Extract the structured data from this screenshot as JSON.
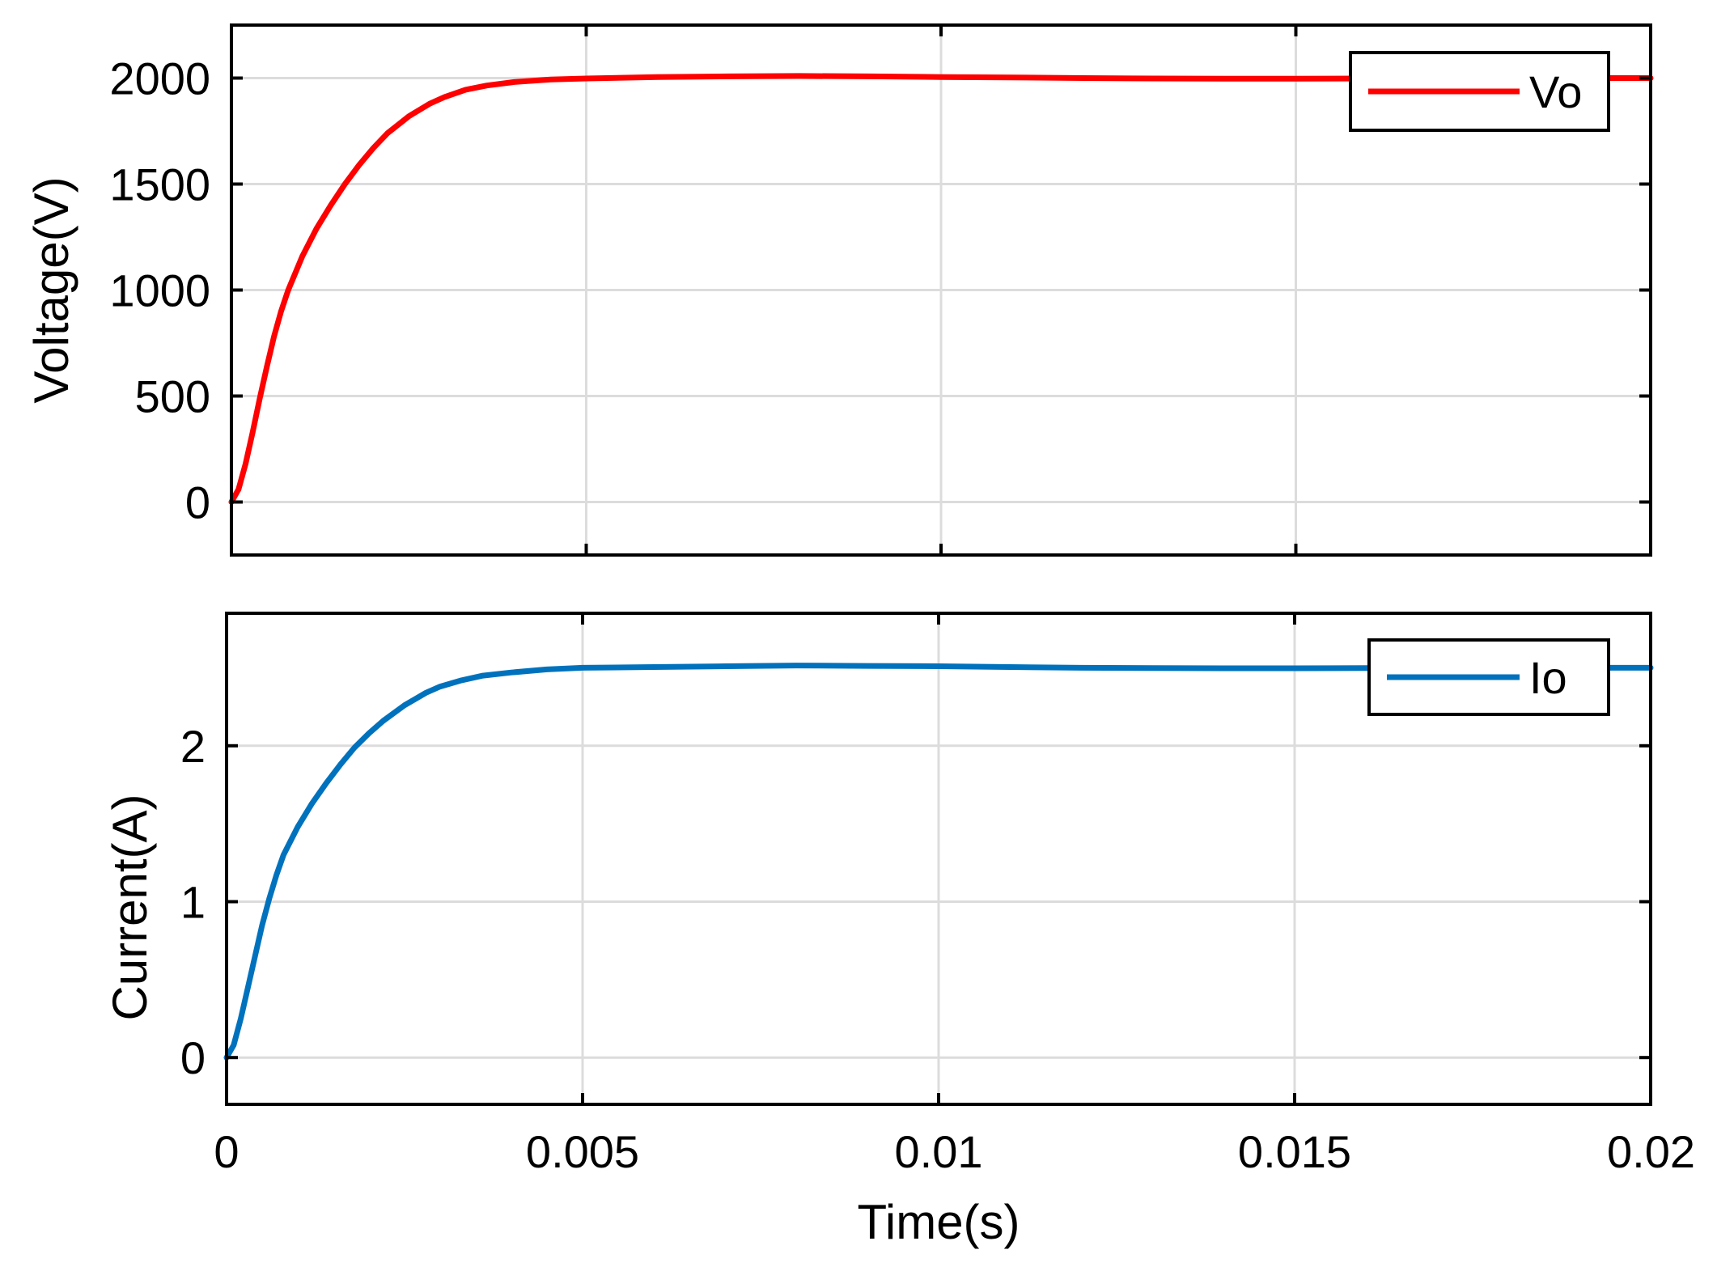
{
  "chart_data": [
    {
      "type": "line",
      "xlabel": "",
      "ylabel": "Voltage(V)",
      "xlim": [
        0,
        0.02
      ],
      "ylim": [
        -250,
        2250
      ],
      "xticks": [
        0,
        0.005,
        0.01,
        0.015,
        0.02
      ],
      "xtick_labels": [],
      "yticks": [
        0,
        500,
        1000,
        1500,
        2000
      ],
      "ytick_labels": [
        "0",
        "500",
        "1000",
        "1500",
        "2000"
      ],
      "grid": true,
      "legend": "top-right",
      "series": [
        {
          "name": "Vo",
          "color": "#ff0000",
          "x": [
            0,
            0.0001,
            0.0002,
            0.0003,
            0.0004,
            0.0005,
            0.0006,
            0.0007,
            0.0008,
            0.001,
            0.0012,
            0.0014,
            0.0016,
            0.0018,
            0.002,
            0.0022,
            0.0025,
            0.0028,
            0.003,
            0.0033,
            0.0036,
            0.004,
            0.0045,
            0.005,
            0.006,
            0.007,
            0.008,
            0.009,
            0.01,
            0.011,
            0.012,
            0.013,
            0.014,
            0.015,
            0.016,
            0.017,
            0.018,
            0.019,
            0.02
          ],
          "y": [
            0,
            60,
            180,
            330,
            490,
            640,
            780,
            900,
            1000,
            1160,
            1290,
            1400,
            1500,
            1590,
            1670,
            1740,
            1820,
            1880,
            1910,
            1945,
            1965,
            1982,
            1993,
            1998,
            2005,
            2008,
            2010,
            2008,
            2005,
            2003,
            2000,
            1998,
            1997,
            1997,
            1998,
            1999,
            2000,
            2000,
            2000
          ]
        }
      ]
    },
    {
      "type": "line",
      "xlabel": "Time(s)",
      "ylabel": "Current(A)",
      "xlim": [
        0,
        0.02
      ],
      "ylim": [
        -0.3,
        2.85
      ],
      "xticks": [
        0,
        0.005,
        0.01,
        0.015,
        0.02
      ],
      "xtick_labels": [
        "0",
        "0.005",
        "0.01",
        "0.015",
        "0.02"
      ],
      "yticks": [
        0,
        1,
        2
      ],
      "ytick_labels": [
        "0",
        "1",
        "2"
      ],
      "grid": true,
      "legend": "top-right",
      "series": [
        {
          "name": "Io",
          "color": "#0072bd",
          "x": [
            0,
            0.0001,
            0.0002,
            0.0003,
            0.0004,
            0.0005,
            0.0006,
            0.0007,
            0.0008,
            0.001,
            0.0012,
            0.0014,
            0.0016,
            0.0018,
            0.002,
            0.0022,
            0.0025,
            0.0028,
            0.003,
            0.0033,
            0.0036,
            0.004,
            0.0045,
            0.005,
            0.006,
            0.007,
            0.008,
            0.009,
            0.01,
            0.011,
            0.012,
            0.013,
            0.014,
            0.015,
            0.016,
            0.017,
            0.018,
            0.019,
            0.02
          ],
          "y": [
            0,
            0.08,
            0.25,
            0.45,
            0.65,
            0.85,
            1.02,
            1.17,
            1.3,
            1.48,
            1.63,
            1.76,
            1.88,
            1.99,
            2.08,
            2.16,
            2.26,
            2.34,
            2.38,
            2.42,
            2.45,
            2.47,
            2.49,
            2.5,
            2.505,
            2.51,
            2.515,
            2.512,
            2.51,
            2.505,
            2.5,
            2.498,
            2.497,
            2.497,
            2.498,
            2.499,
            2.5,
            2.5,
            2.5
          ]
        }
      ]
    }
  ]
}
